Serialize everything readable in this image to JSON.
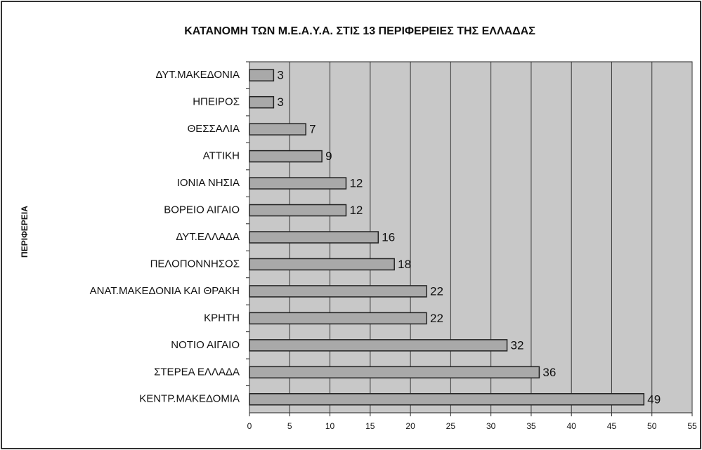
{
  "chart_data": {
    "type": "barh",
    "title": "ΚΑΤΑΝΟΜΗ ΤΩΝ Μ.Ε.Α.Υ.Α. ΣΤΙΣ 13 ΠΕΡΙΦΕΡΕΙΕΣ ΤΗΣ ΕΛΛΑΔΑΣ",
    "y_label": "ΠΕΡΙΦΕΡΕΙΑ",
    "categories": [
      "ΔΥΤ.ΜΑΚΕΔΟΝΙΑ",
      "ΗΠΕΙΡΟΣ",
      "ΘΕΣΣΑΛΙΑ",
      "ΑΤΤΙΚΗ",
      "ΙΟΝΙΑ ΝΗΣΙΑ",
      "ΒΟΡΕΙΟ ΑΙΓΑΙΟ",
      "ΔΥΤ.ΕΛΛΑΔΑ",
      "ΠΕΛΟΠΟΝΝΗΣΟΣ",
      "ΑΝΑΤ.ΜΑΚΕΔΟΝΙΑ ΚΑΙ ΘΡΑΚΗ",
      "ΚΡΗΤΗ",
      "ΝΟΤΙΟ ΑΙΓΑΙΟ",
      "ΣΤΕΡΕΑ ΕΛΛΑΔΑ",
      "ΚΕΝΤΡ.ΜΑΚΕΔΟΜΙΑ"
    ],
    "values": [
      3,
      3,
      7,
      9,
      12,
      12,
      16,
      18,
      22,
      22,
      32,
      36,
      49
    ],
    "color": "#a9a9a9",
    "xlim": [
      0,
      55
    ],
    "xticks": [
      0,
      5,
      10,
      15,
      20,
      25,
      30,
      35,
      40,
      45,
      50,
      55
    ],
    "grid": true
  }
}
